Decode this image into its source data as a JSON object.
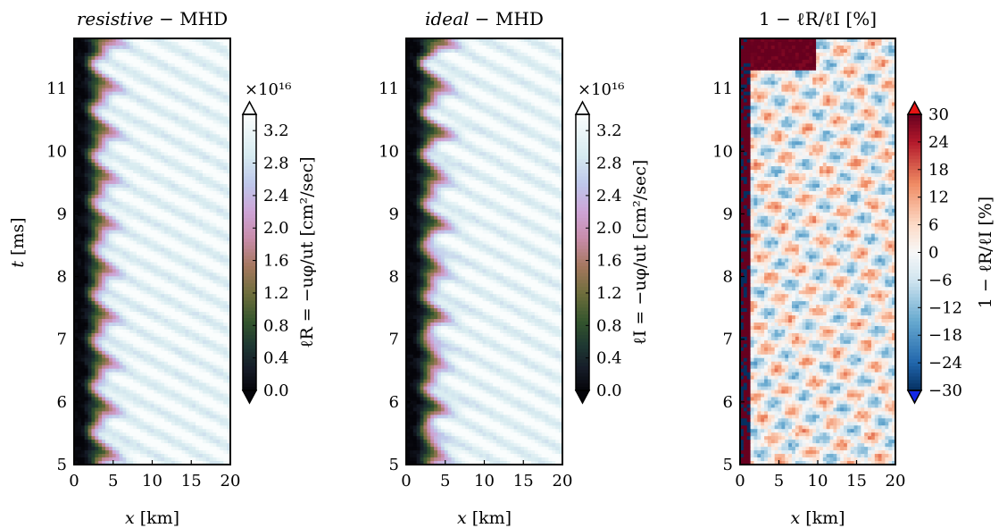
{
  "chart_data": [
    {
      "type": "heatmap",
      "title_italic": "resistive",
      "title_rest": " − MHD",
      "xlabel_var": "x",
      "xlabel_unit": " [km]",
      "ylabel_var": "t",
      "ylabel_unit": " [ms]",
      "xlim": [
        0,
        20
      ],
      "ylim": [
        5,
        11.8
      ],
      "xticks": [
        "0",
        "5",
        "10",
        "15",
        "20"
      ],
      "yticks": [
        "5",
        "6",
        "7",
        "8",
        "9",
        "10",
        "11"
      ],
      "colormap": "cubehelix",
      "colorbar": {
        "label": "ℓR = −uφ/ut [cm²/sec]",
        "multiplier": "×10¹⁶",
        "range": [
          0,
          3.4
        ],
        "ticks": [
          "0.0",
          "0.4",
          "0.8",
          "1.2",
          "1.6",
          "2.0",
          "2.4",
          "2.8",
          "3.2"
        ],
        "extend": "both"
      }
    },
    {
      "type": "heatmap",
      "title_italic": "ideal",
      "title_rest": " − MHD",
      "xlabel_var": "x",
      "xlabel_unit": " [km]",
      "xlim": [
        0,
        20
      ],
      "ylim": [
        5,
        11.8
      ],
      "xticks": [
        "0",
        "5",
        "10",
        "15",
        "20"
      ],
      "yticks": [
        "5",
        "6",
        "7",
        "8",
        "9",
        "10",
        "11"
      ],
      "colormap": "cubehelix",
      "colorbar": {
        "label": "ℓI = −uφ/ut [cm²/sec]",
        "multiplier": "×10¹⁶",
        "range": [
          0,
          3.4
        ],
        "ticks": [
          "0.0",
          "0.4",
          "0.8",
          "1.2",
          "1.6",
          "2.0",
          "2.4",
          "2.8",
          "3.2"
        ],
        "extend": "both"
      }
    },
    {
      "type": "heatmap",
      "title": "1 − ℓR/ℓI [%]",
      "xlabel_var": "x",
      "xlabel_unit": " [km]",
      "xlim": [
        0,
        20
      ],
      "ylim": [
        5,
        11.8
      ],
      "xticks": [
        "0",
        "5",
        "10",
        "15",
        "20"
      ],
      "yticks": [
        "5",
        "6",
        "7",
        "8",
        "9",
        "10",
        "11"
      ],
      "colormap": "RdBu_r",
      "colorbar": {
        "label": "1 − ℓR/ℓI [%]",
        "range": [
          -30,
          30
        ],
        "ticks": [
          "30",
          "24",
          "18",
          "12",
          "6",
          "0",
          "−6",
          "−12",
          "−18",
          "−24",
          "−30"
        ],
        "extend": "both"
      }
    }
  ]
}
